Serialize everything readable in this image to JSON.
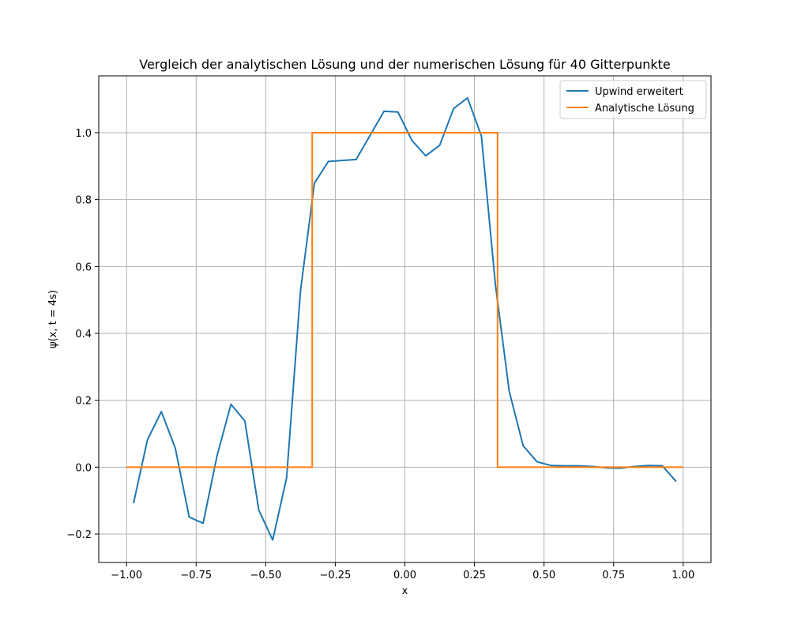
{
  "chart_data": {
    "type": "line",
    "title": "Vergleich der analytischen Lösung und der numerischen Lösung für 40 Gitterpunkte",
    "xlabel": "x",
    "ylabel": "ψ(x, t = 4s)",
    "xlim": [
      -1.1,
      1.1
    ],
    "ylim": [
      -0.285,
      1.17
    ],
    "xticks": [
      -1.0,
      -0.75,
      -0.5,
      -0.25,
      0.0,
      0.25,
      0.5,
      0.75,
      1.0
    ],
    "xtick_labels": [
      "−1.00",
      "−0.75",
      "−0.50",
      "−0.25",
      "0.00",
      "0.25",
      "0.50",
      "0.75",
      "1.00"
    ],
    "yticks": [
      -0.2,
      0.0,
      0.2,
      0.4,
      0.6,
      0.8,
      1.0
    ],
    "ytick_labels": [
      "−0.2",
      "0.0",
      "0.2",
      "0.4",
      "0.6",
      "0.8",
      "1.0"
    ],
    "grid": true,
    "legend_position": "top-right",
    "series": [
      {
        "name": "Upwind erweitert",
        "color": "#1f77b4",
        "x": [
          -0.975,
          -0.925,
          -0.875,
          -0.825,
          -0.775,
          -0.725,
          -0.675,
          -0.625,
          -0.575,
          -0.525,
          -0.475,
          -0.425,
          -0.375,
          -0.325,
          -0.275,
          -0.225,
          -0.175,
          -0.125,
          -0.075,
          -0.025,
          0.025,
          0.075,
          0.125,
          0.175,
          0.225,
          0.275,
          0.325,
          0.375,
          0.425,
          0.475,
          0.525,
          0.575,
          0.625,
          0.675,
          0.725,
          0.775,
          0.825,
          0.875,
          0.925,
          0.975
        ],
        "y": [
          -0.108,
          0.082,
          0.166,
          0.057,
          -0.149,
          -0.168,
          0.034,
          0.188,
          0.138,
          -0.128,
          -0.218,
          -0.032,
          0.528,
          0.849,
          0.914,
          0.917,
          0.92,
          0.992,
          1.064,
          1.062,
          0.977,
          0.931,
          0.962,
          1.072,
          1.104,
          0.99,
          0.548,
          0.227,
          0.064,
          0.016,
          0.005,
          0.004,
          0.004,
          0.002,
          -0.002,
          -0.003,
          0.002,
          0.005,
          0.004,
          -0.043
        ]
      },
      {
        "name": "Analytische Lösung",
        "color": "#ff7f0e",
        "x": [
          -1.0,
          -0.333,
          -0.333,
          0.333,
          0.333,
          1.0
        ],
        "y": [
          0.0,
          0.0,
          1.0,
          1.0,
          0.0,
          0.0
        ]
      }
    ]
  }
}
